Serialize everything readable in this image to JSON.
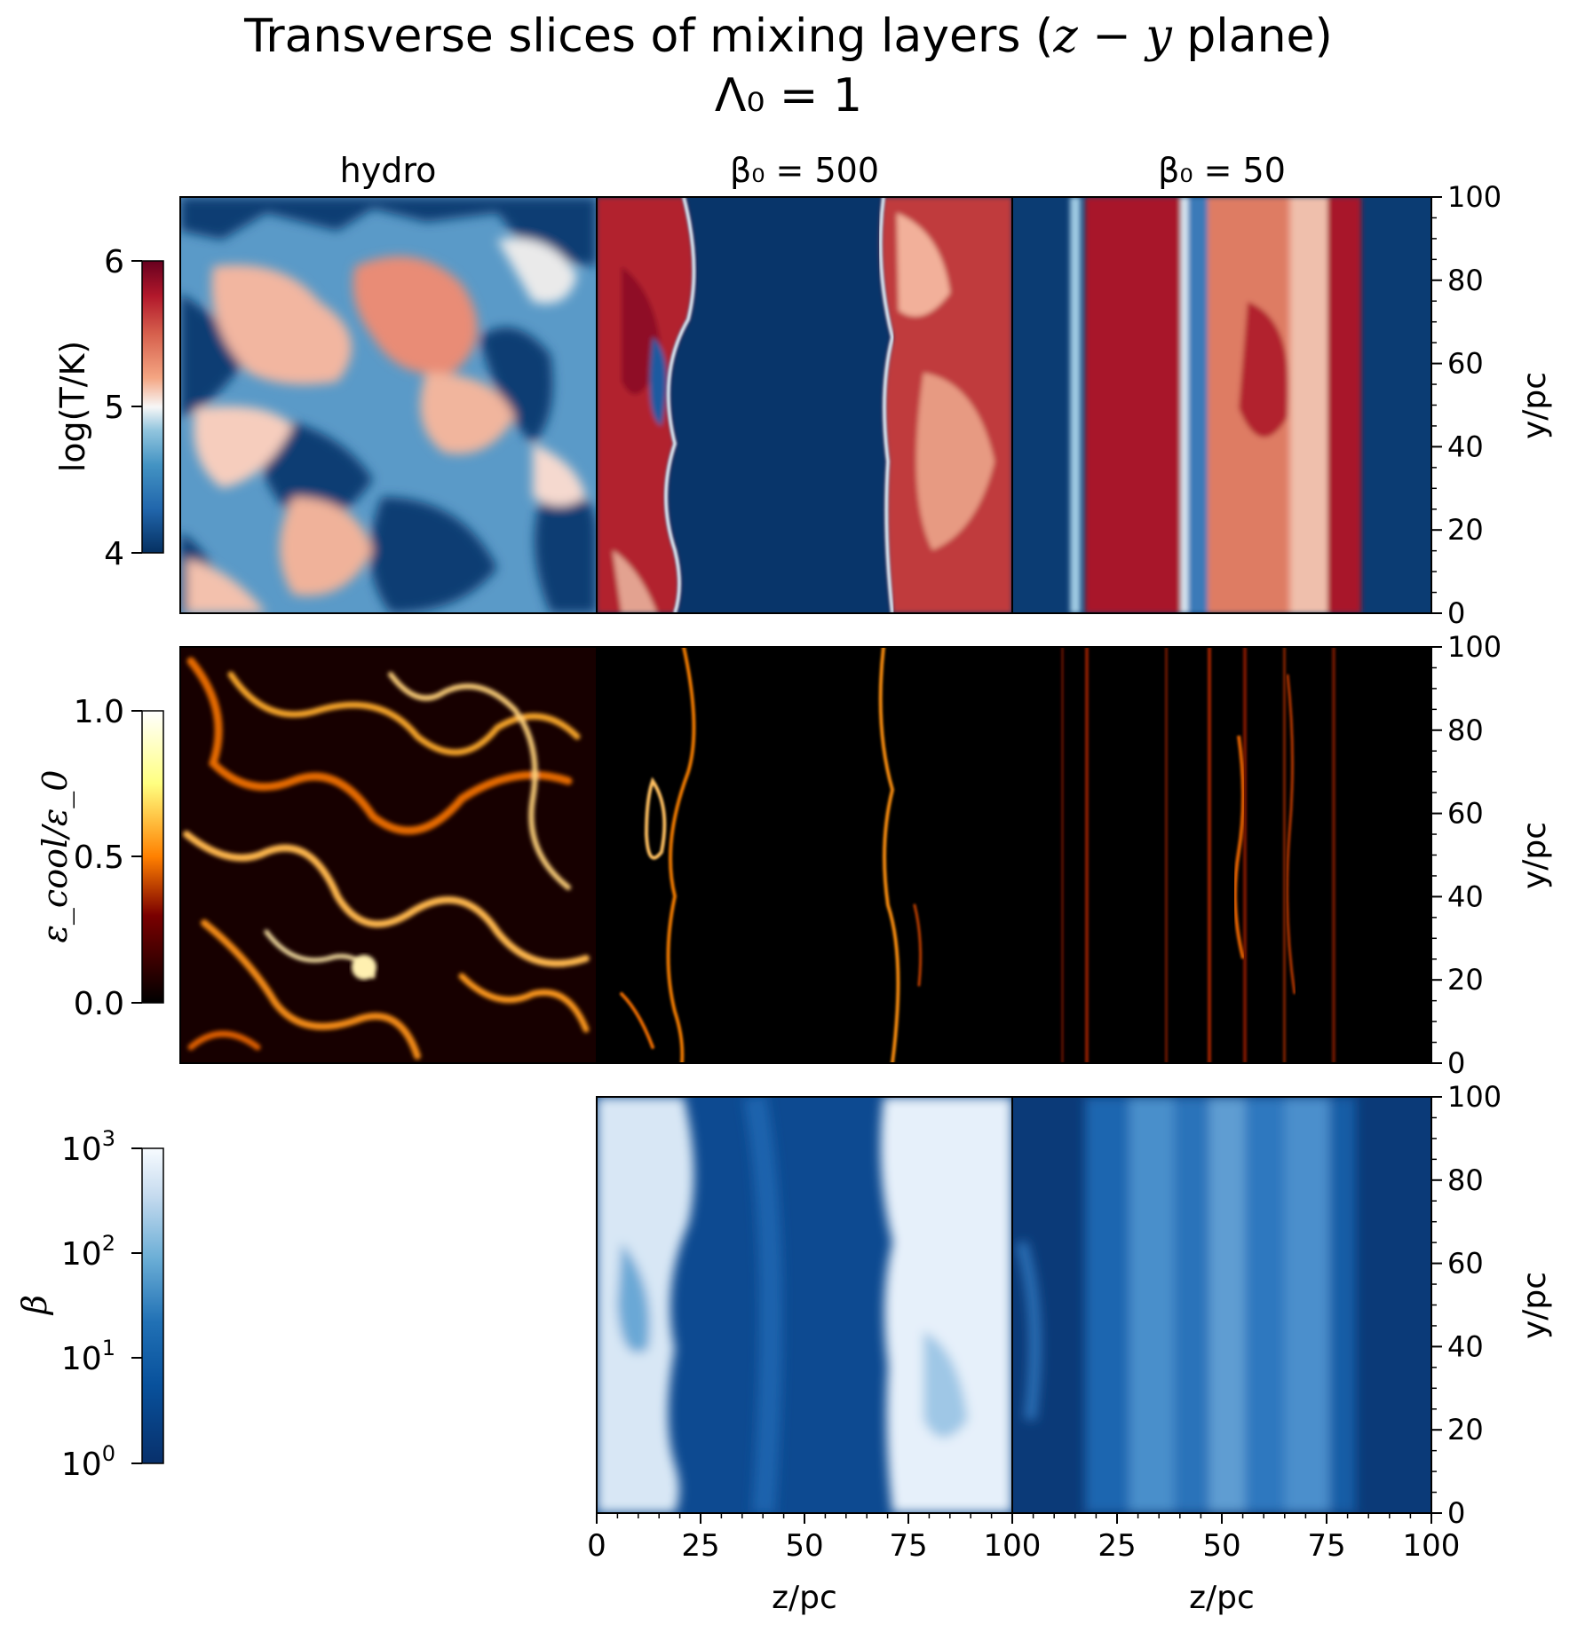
{
  "title": {
    "line1_prefix": "Transverse slices of mixing layers (",
    "line1_math": "z − y",
    "line1_suffix": " plane)",
    "line2": "Λ₀ = 1"
  },
  "columns": [
    "hydro",
    "β₀ = 500",
    "β₀ = 50"
  ],
  "chart_data": {
    "type": "heatmap",
    "layout": "3x3 panel grid of 2D slices (z horizontal, y vertical); bottom-left panel empty",
    "columns": [
      "hydro",
      "β₀ = 500",
      "β₀ = 50"
    ],
    "rows": [
      {
        "quantity": "log(T/K)",
        "colormap": "RdBu_r",
        "colorbar_range": [
          4,
          6
        ],
        "colorbar_ticks": [
          "4",
          "5",
          "6"
        ]
      },
      {
        "quantity": "ε_cool/ε_0",
        "colormap": "afmhot",
        "colorbar_range": [
          0.0,
          1.0
        ],
        "colorbar_ticks": [
          "0.0",
          "0.5",
          "1.0"
        ]
      },
      {
        "quantity": "β",
        "colormap": "Blues_r",
        "colorbar_scale": "log",
        "colorbar_range": [
          1,
          1000
        ],
        "colorbar_ticks": [
          "10",
          "10",
          "10",
          "10"
        ],
        "colorbar_tick_exponents": [
          "0",
          "1",
          "2",
          "3"
        ]
      }
    ],
    "x_axis": {
      "label": "z/pc",
      "range": [
        0,
        100
      ],
      "ticks": [
        "0",
        "25",
        "50",
        "75",
        "100"
      ]
    },
    "y_axis": {
      "label": "y/pc",
      "range": [
        0,
        100
      ],
      "ticks": [
        "0",
        "20",
        "40",
        "60",
        "80",
        "100"
      ],
      "side": "right"
    },
    "qualitative_structure": {
      "hydro": "turbulent mixing of hot and cold gas over whole box",
      "beta0_500": "cold band roughly z 18–70 pc, hot gas on both sides, thin cooling fronts at interfaces",
      "beta0_50": "vertically elongated filaments, cold outside z < 17 and z > 77 pc, warm/hot band in between"
    }
  },
  "colors": {
    "rdbu_low": "#053061",
    "rdbu_mid": "#f7f7f7",
    "rdbu_high": "#67001f",
    "afmhot_low": "#000000",
    "afmhot_high": "#ffffff",
    "blues_low": "#08306b",
    "blues_high": "#f7fbff"
  }
}
